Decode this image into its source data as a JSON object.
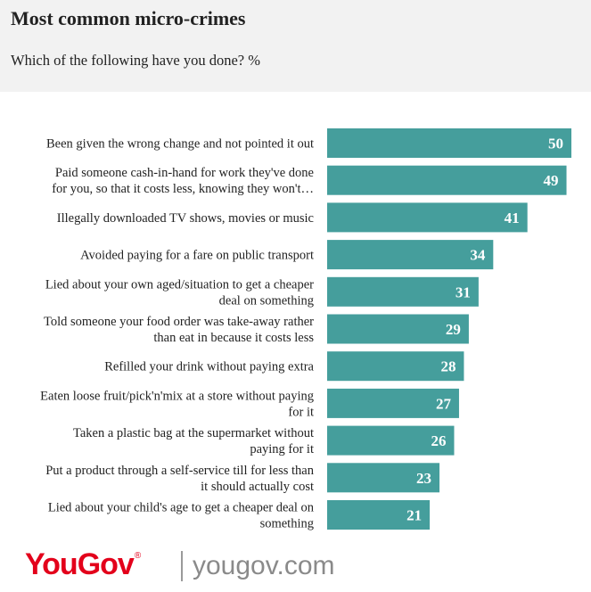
{
  "header": {
    "title": "Most common micro-crimes",
    "subtitle": "Which of the following have you done? %"
  },
  "chart_data": {
    "type": "bar",
    "orientation": "horizontal",
    "title": "Most common micro-crimes",
    "subtitle": "Which of the following have you done? %",
    "xlabel": "",
    "ylabel": "",
    "xlim": [
      0,
      50
    ],
    "grid": false,
    "bar_color": "#459e9c",
    "label_color": "#ffffff",
    "categories": [
      [
        "Been given the wrong change and not pointed it out"
      ],
      [
        "Paid someone cash-in-hand for work they've done",
        "for you, so that it costs less, knowing they won't…"
      ],
      [
        "Illegally downloaded TV shows, movies or music"
      ],
      [
        "Avoided paying for a fare on public transport"
      ],
      [
        "Lied about your own aged/situation to get a cheaper",
        "deal on something"
      ],
      [
        "Told someone your food order was take-away rather",
        "than eat in because it costs less"
      ],
      [
        "Refilled your drink without paying extra"
      ],
      [
        "Eaten loose fruit/pick'n'mix at a store without paying",
        "for it"
      ],
      [
        "Taken a plastic bag at the supermarket without",
        "paying for it"
      ],
      [
        "Put a product through a self-service till for less than",
        "it should actually cost"
      ],
      [
        "Lied about your child's age to get a cheaper deal on",
        "something"
      ]
    ],
    "values": [
      50,
      49,
      41,
      34,
      31,
      29,
      28,
      27,
      26,
      23,
      21
    ]
  },
  "footer": {
    "brand": "YouGov",
    "brand_mark": "®",
    "site": "yougov.com"
  }
}
